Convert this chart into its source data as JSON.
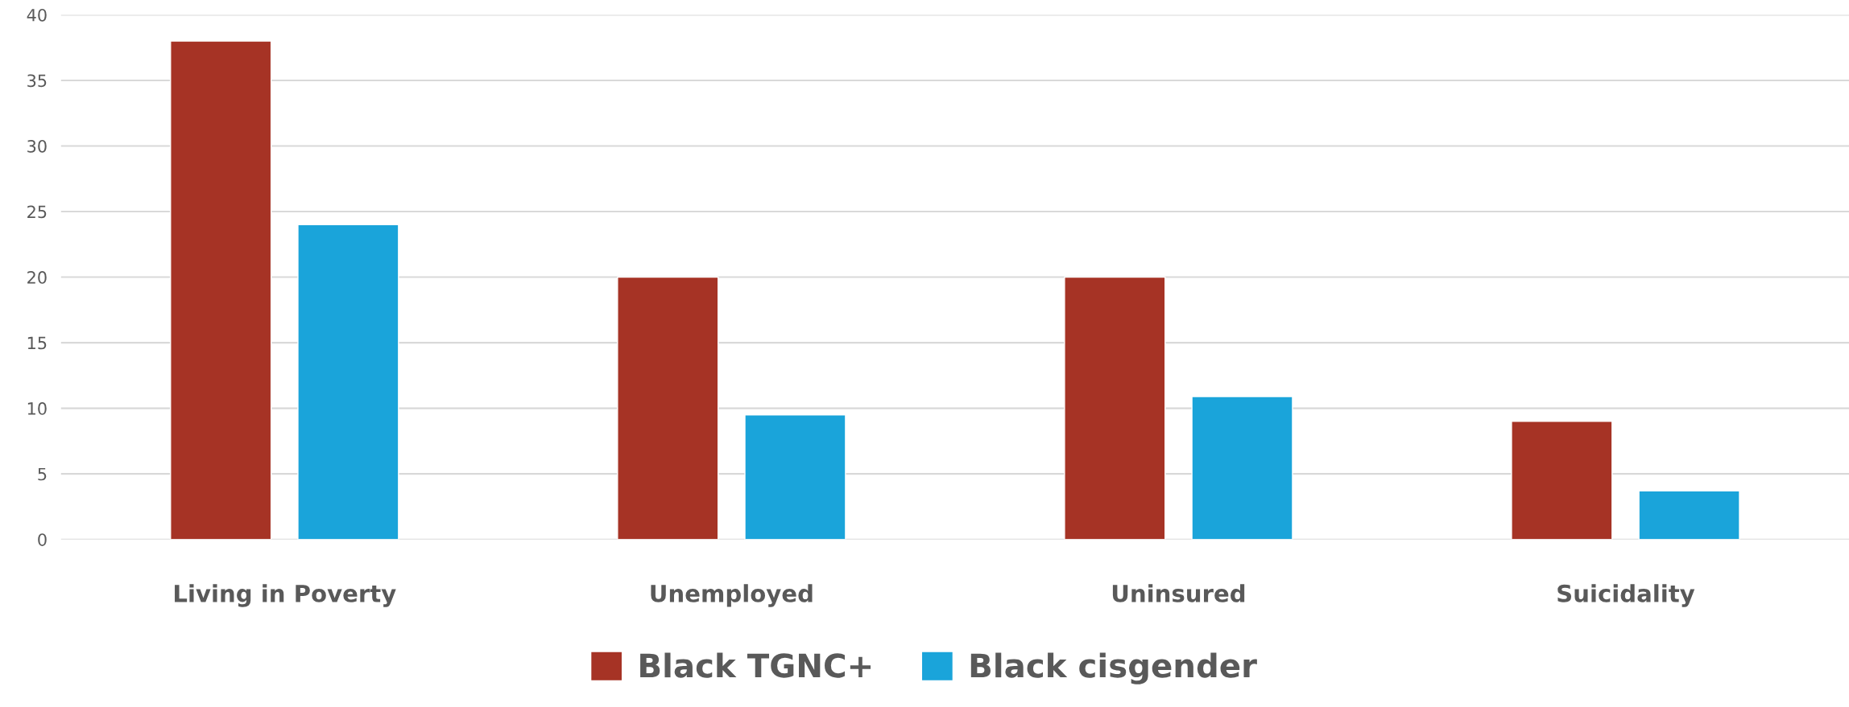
{
  "chart_data": {
    "type": "bar",
    "categories": [
      "Living in Poverty",
      "Unemployed",
      "Uninsured",
      "Suicidality"
    ],
    "series": [
      {
        "name": "Black TGNC+",
        "color": "#a63325",
        "values": [
          38,
          20,
          20,
          9
        ]
      },
      {
        "name": "Black cisgender",
        "color": "#1aa4da",
        "values": [
          24,
          9.5,
          10.9,
          3.7
        ]
      }
    ],
    "ylim": [
      0,
      40
    ],
    "yticks": [
      0,
      5,
      10,
      15,
      20,
      25,
      30,
      35,
      40
    ],
    "grid": "y",
    "legend": "bottom"
  }
}
